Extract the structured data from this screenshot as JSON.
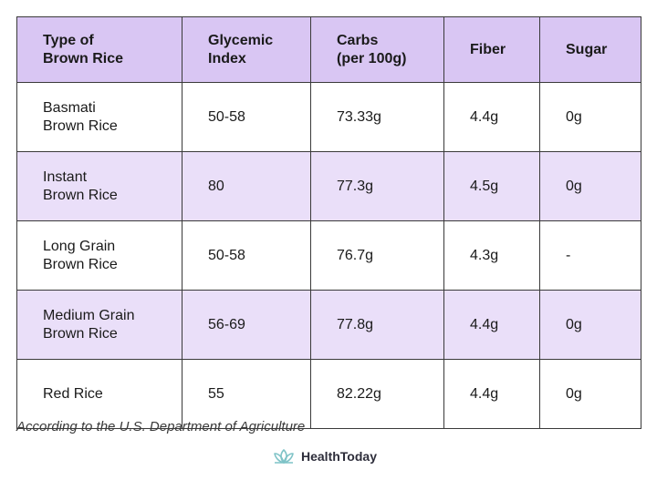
{
  "table": {
    "headers": [
      "Type of\nBrown Rice",
      "Glycemic\nIndex",
      "Carbs\n(per 100g)",
      "Fiber",
      "Sugar"
    ],
    "rows": [
      [
        "Basmati\nBrown Rice",
        "50-58",
        "73.33g",
        "4.4g",
        "0g"
      ],
      [
        "Instant\nBrown Rice",
        "80",
        "77.3g",
        "4.5g",
        "0g"
      ],
      [
        "Long Grain\nBrown Rice",
        "50-58",
        "76.7g",
        "4.3g",
        "-"
      ],
      [
        "Medium Grain\nBrown Rice",
        "56-69",
        "77.8g",
        "4.4g",
        "0g"
      ],
      [
        "Red Rice",
        "55",
        "82.22g",
        "4.4g",
        "0g"
      ]
    ]
  },
  "source": "According to the U.S. Department of Agriculture",
  "brand": {
    "name": "HealthToday",
    "icon": "lotus-icon",
    "icon_color": "#7fc3c7"
  },
  "colors": {
    "header_bg": "#d9c6f3",
    "shaded_row_bg": "#eadff9",
    "border": "#3a3a3a"
  }
}
